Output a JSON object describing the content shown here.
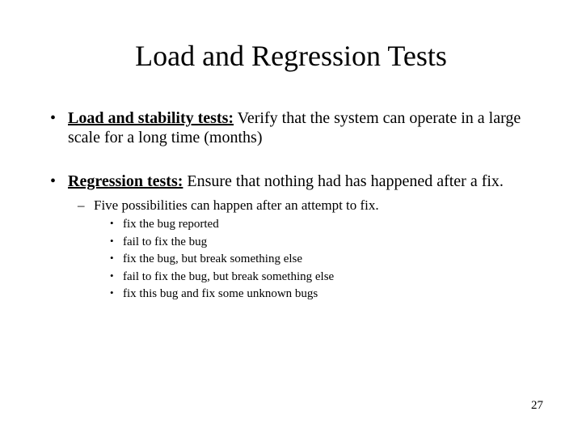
{
  "background_color": "#ffffff",
  "text_color": "#000000",
  "font_family": "Times New Roman",
  "title": {
    "text": "Load and Regression Tests",
    "fontsize": 36
  },
  "bullets": [
    {
      "term": "Load and stability tests:",
      "body": " Verify that the system can operate in a large scale for a long time (months)"
    },
    {
      "term": "Regression tests:",
      "body": " Ensure that nothing had has happened after a fix.",
      "sub": {
        "intro": "Five possibilities can happen after an attempt to fix.",
        "items": [
          "fix the bug reported",
          "fail to fix the bug",
          "fix the bug, but break something else",
          "fail to fix the bug, but break something else",
          "fix this bug and fix some unknown bugs"
        ]
      }
    }
  ],
  "page_number": "27"
}
